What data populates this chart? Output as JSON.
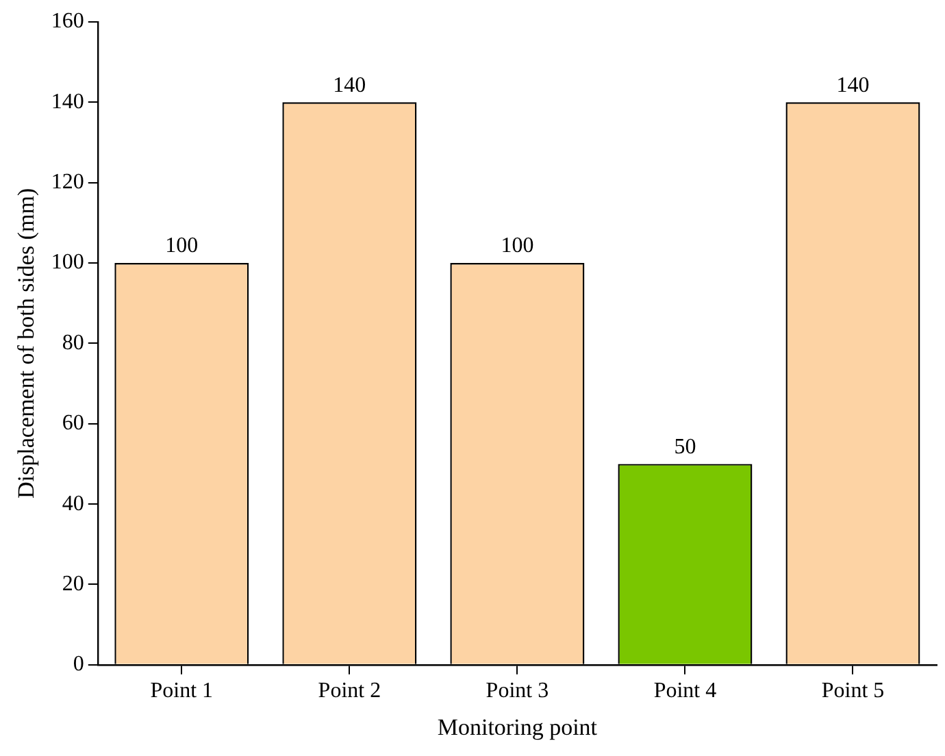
{
  "chart_data": {
    "type": "bar",
    "xlabel": "Monitoring point",
    "ylabel": "Displacement of both sides (mm)",
    "categories": [
      "Point 1",
      "Point 2",
      "Point 3",
      "Point 4",
      "Point 5"
    ],
    "values": [
      100,
      140,
      100,
      50,
      140
    ],
    "colors": [
      "#fdd3a4",
      "#fdd3a4",
      "#fdd3a4",
      "#7ac600",
      "#fdd3a4"
    ],
    "ylim": [
      0,
      160
    ],
    "yticks": [
      0,
      20,
      40,
      60,
      80,
      100,
      120,
      140,
      160
    ],
    "data_labels": true,
    "grid": false,
    "legend": false
  }
}
